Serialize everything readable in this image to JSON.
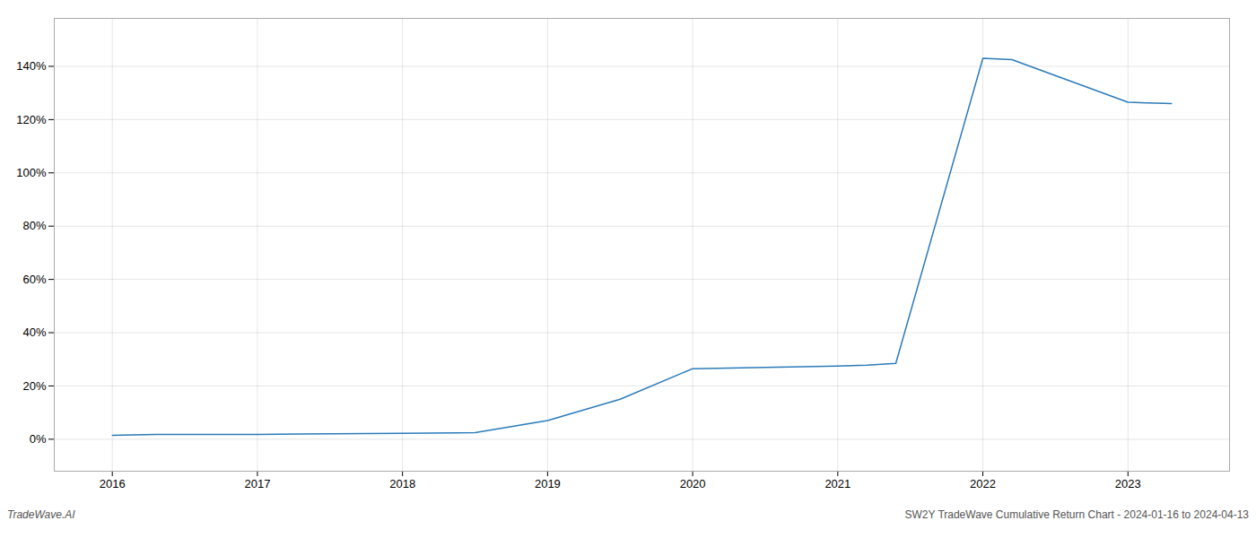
{
  "chart_data": {
    "type": "line",
    "x": [
      2016.0,
      2016.3,
      2017.0,
      2017.3,
      2018.0,
      2018.5,
      2019.0,
      2019.5,
      2020.0,
      2020.5,
      2021.0,
      2021.2,
      2021.4,
      2022.0,
      2022.2,
      2023.0,
      2023.3
    ],
    "values": [
      1.5,
      1.8,
      1.8,
      2.0,
      2.2,
      2.5,
      7.0,
      15.0,
      26.5,
      27.0,
      27.5,
      27.8,
      28.5,
      143.0,
      142.5,
      126.5,
      126.0
    ],
    "color": "#2b7bba",
    "xlim": [
      2015.6,
      2023.7
    ],
    "xticks": [
      2016,
      2017,
      2018,
      2019,
      2020,
      2021,
      2022,
      2023
    ],
    "ylim": [
      -12,
      158
    ],
    "yticks": [
      {
        "value": 0,
        "label": "0%"
      },
      {
        "value": 20,
        "label": "20%"
      },
      {
        "value": 40,
        "label": "40%"
      },
      {
        "value": 60,
        "label": "60%"
      },
      {
        "value": 80,
        "label": "80%"
      },
      {
        "value": 100,
        "label": "100%"
      },
      {
        "value": 120,
        "label": "120%"
      },
      {
        "value": 140,
        "label": "140%"
      }
    ],
    "grid": true,
    "annotations": [
      "TradeWave.AI",
      "SW2Y TradeWave Cumulative Return Chart - 2024-01-16 to 2024-04-13"
    ]
  }
}
